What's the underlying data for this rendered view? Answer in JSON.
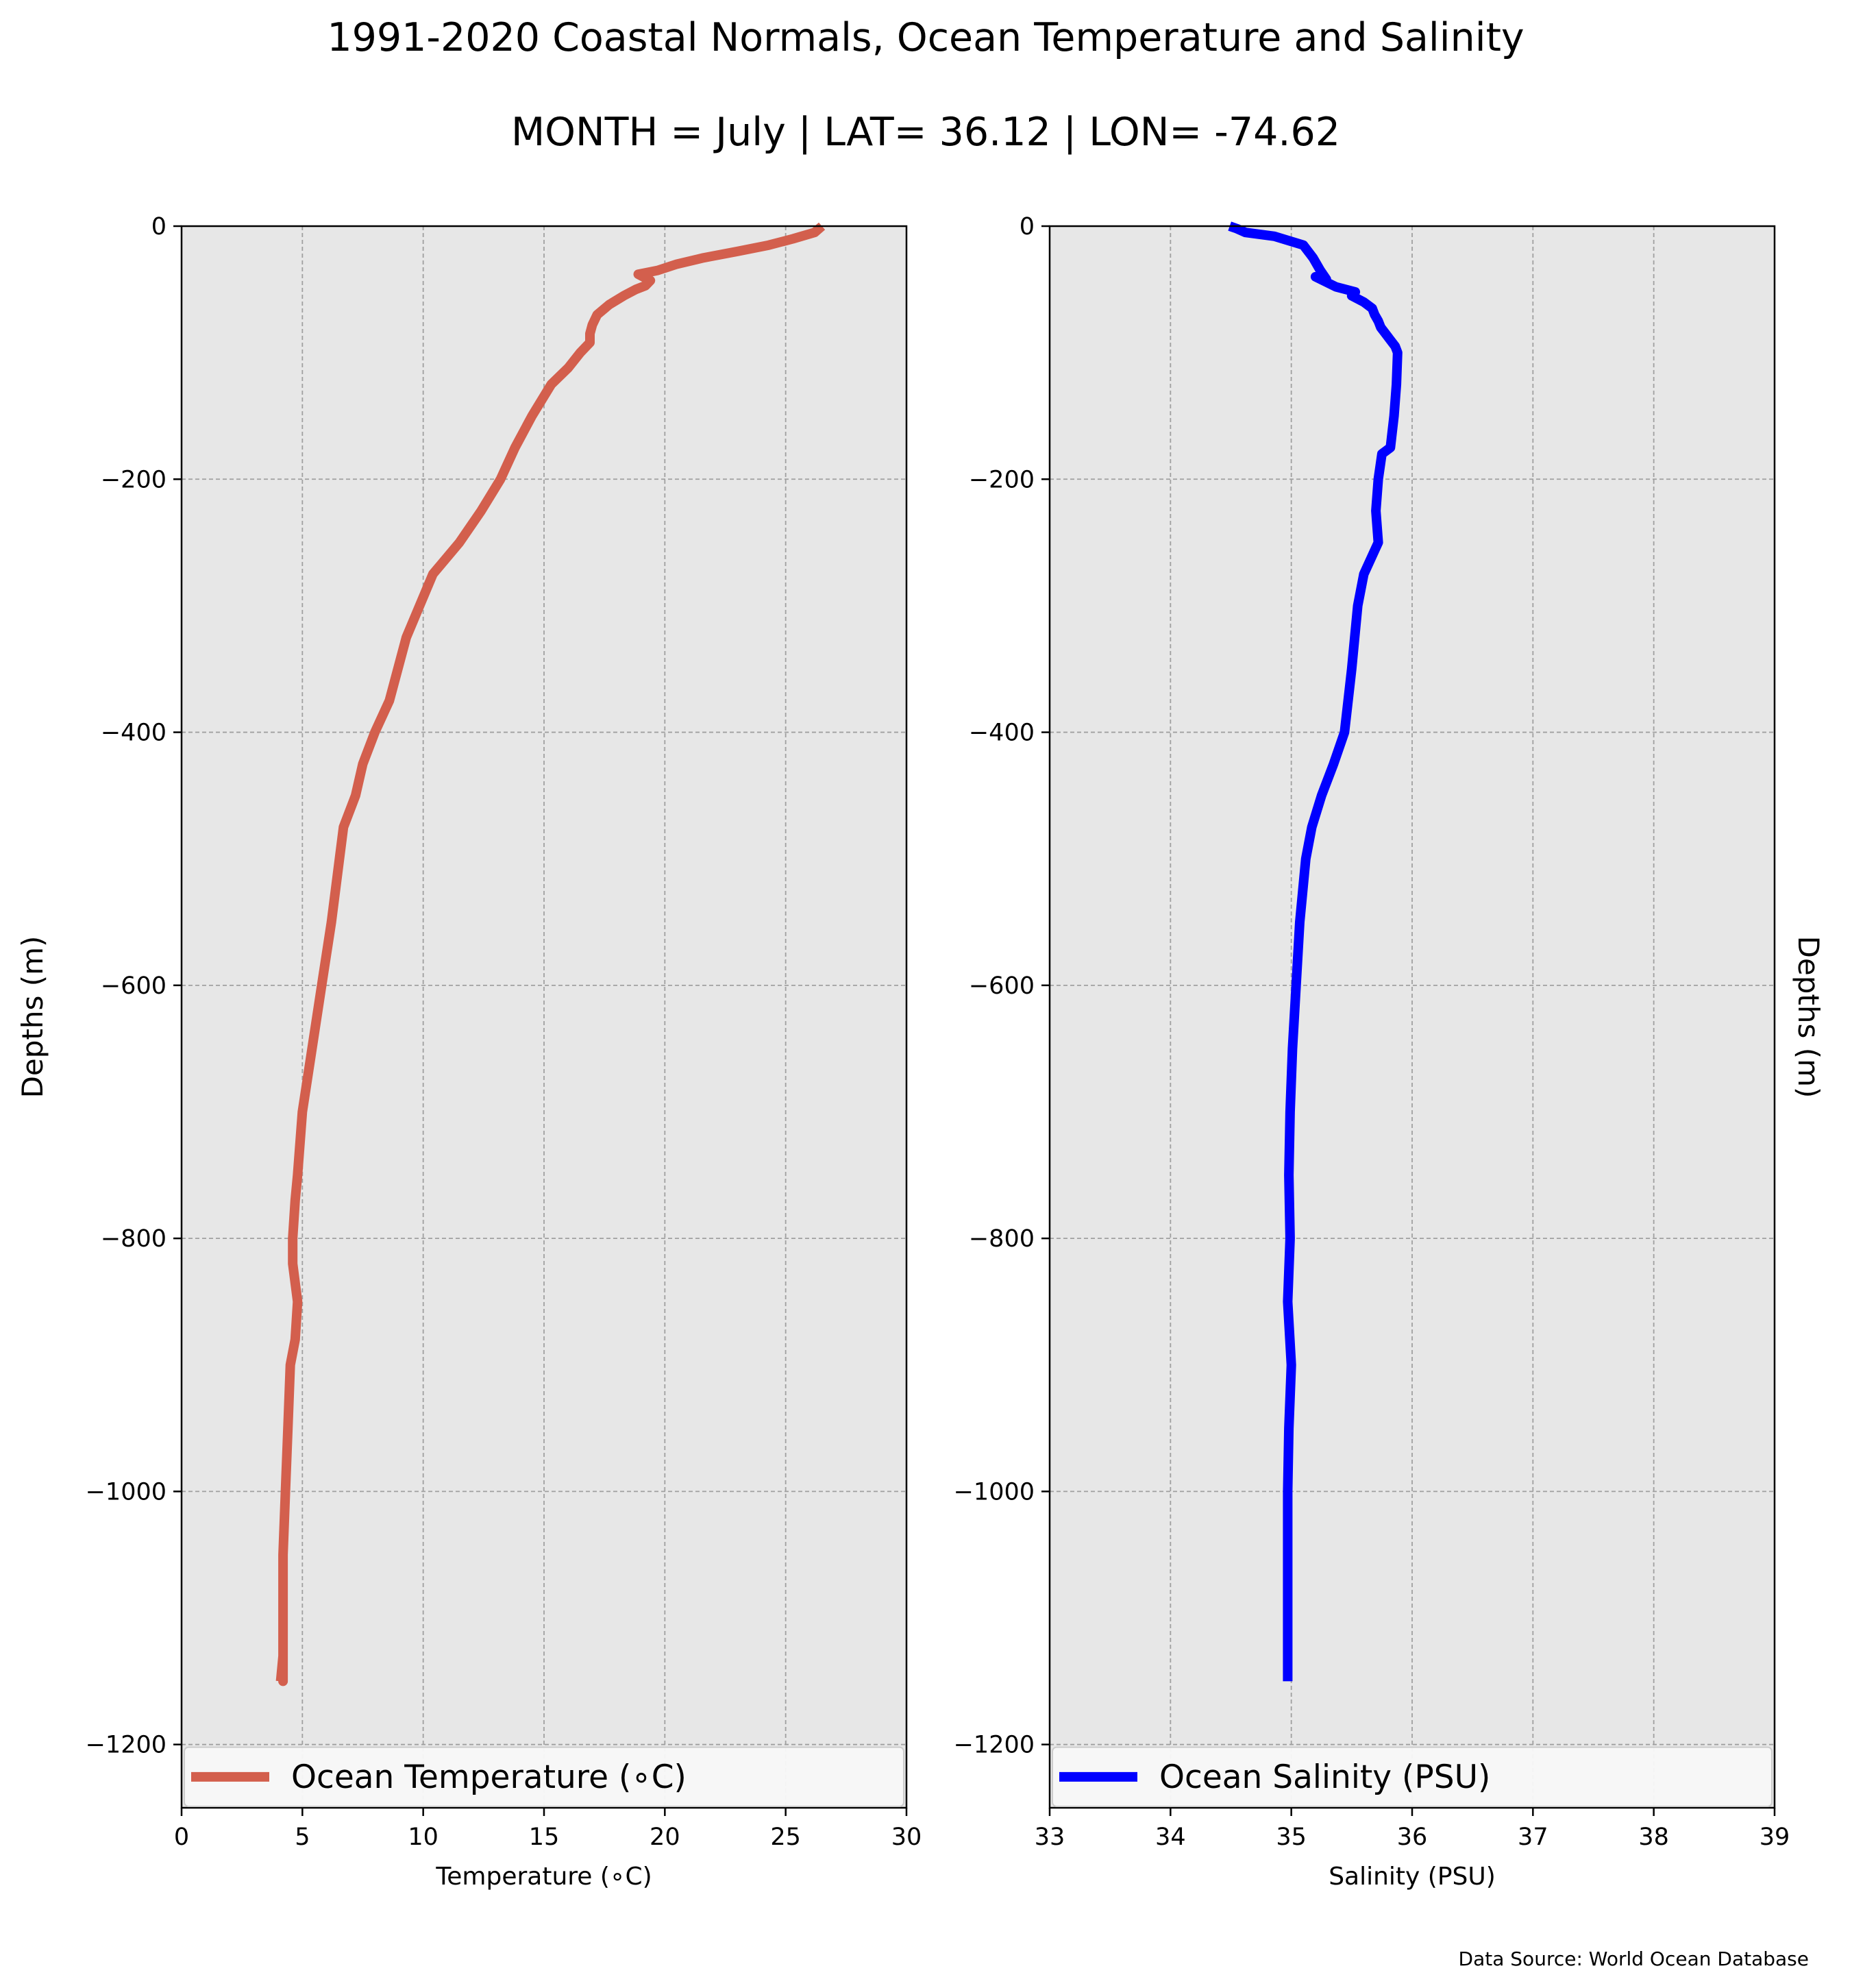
{
  "figure": {
    "title": "1991-2020 Coastal Normals, Ocean Temperature and Salinity",
    "subtitle": "MONTH = July | LAT= 36.12 | LON= -74.62",
    "source": "Data Source: World Ocean Database"
  },
  "chart_data": [
    {
      "type": "line",
      "xlabel": "Temperature (∘C)",
      "ylabel": "Depths (m)",
      "xlim": [
        0,
        30
      ],
      "ylim": [
        -1250,
        0
      ],
      "xticks": [
        "0",
        "5",
        "10",
        "15",
        "20",
        "25",
        "30"
      ],
      "yticks": [
        "0",
        "−200",
        "−400",
        "−600",
        "−800",
        "−1000",
        "−1200"
      ],
      "grid": true,
      "legend": "lower center",
      "color": "#d35f4d",
      "series": [
        {
          "name": "Ocean Temperature (∘C)",
          "x": [
            26.5,
            26.2,
            25.3,
            24.3,
            23.0,
            21.6,
            20.5,
            19.7,
            18.9,
            19.1,
            19.4,
            19.2,
            18.8,
            18.3,
            17.7,
            17.2,
            17.0,
            16.9,
            16.9,
            16.5,
            16.0,
            15.3,
            14.5,
            13.8,
            13.2,
            12.4,
            11.5,
            10.4,
            9.3,
            8.6,
            8.0,
            7.5,
            7.2,
            6.7,
            6.2,
            5.8,
            5.4,
            5.0,
            4.8,
            4.7,
            4.6,
            4.6,
            4.8,
            4.7,
            4.5,
            4.4,
            4.3,
            4.2,
            4.2,
            4.2,
            4.2,
            4.2,
            4.1
          ],
          "y": [
            0,
            -5,
            -10,
            -15,
            -20,
            -25,
            -30,
            -35,
            -38,
            -40,
            -43,
            -47,
            -50,
            -55,
            -62,
            -70,
            -78,
            -85,
            -92,
            -100,
            -112,
            -125,
            -150,
            -175,
            -200,
            -225,
            -250,
            -275,
            -325,
            -375,
            -400,
            -425,
            -450,
            -475,
            -550,
            -600,
            -650,
            -700,
            -750,
            -770,
            -800,
            -820,
            -850,
            -880,
            -900,
            -950,
            -1000,
            -1050,
            -1100,
            -1150,
            -1120,
            -1130,
            -1150
          ]
        }
      ]
    },
    {
      "type": "line",
      "xlabel": "Salinity (PSU)",
      "ylabel": "Depths (m)",
      "xlim": [
        33,
        39
      ],
      "ylim": [
        -1250,
        0
      ],
      "xticks": [
        "33",
        "34",
        "35",
        "36",
        "37",
        "38",
        "39"
      ],
      "yticks": [
        "0",
        "−200",
        "−400",
        "−600",
        "−800",
        "−1000",
        "−1200"
      ],
      "grid": true,
      "legend": "lower center",
      "color": "#0000ff",
      "series": [
        {
          "name": "Ocean Salinity (PSU)",
          "x": [
            34.49,
            34.55,
            34.62,
            34.86,
            35.1,
            35.18,
            35.24,
            35.29,
            35.2,
            35.37,
            35.53,
            35.5,
            35.6,
            35.67,
            35.69,
            35.72,
            35.74,
            35.78,
            35.82,
            35.86,
            35.88,
            35.87,
            35.85,
            35.82,
            35.75,
            35.72,
            35.7,
            35.72,
            35.6,
            35.55,
            35.5,
            35.44,
            35.35,
            35.25,
            35.17,
            35.12,
            35.07,
            35.04,
            35.01,
            34.99,
            34.98,
            34.99,
            34.97,
            35.0,
            34.98,
            34.97,
            34.97
          ],
          "y": [
            0,
            -2,
            -5,
            -8,
            -15,
            -25,
            -35,
            -42,
            -40,
            -48,
            -52,
            -55,
            -60,
            -65,
            -70,
            -75,
            -80,
            -85,
            -90,
            -95,
            -100,
            -125,
            -150,
            -175,
            -180,
            -200,
            -225,
            -250,
            -275,
            -300,
            -350,
            -400,
            -425,
            -450,
            -475,
            -500,
            -550,
            -600,
            -650,
            -700,
            -750,
            -800,
            -850,
            -900,
            -950,
            -1000,
            -1150
          ]
        }
      ]
    }
  ]
}
